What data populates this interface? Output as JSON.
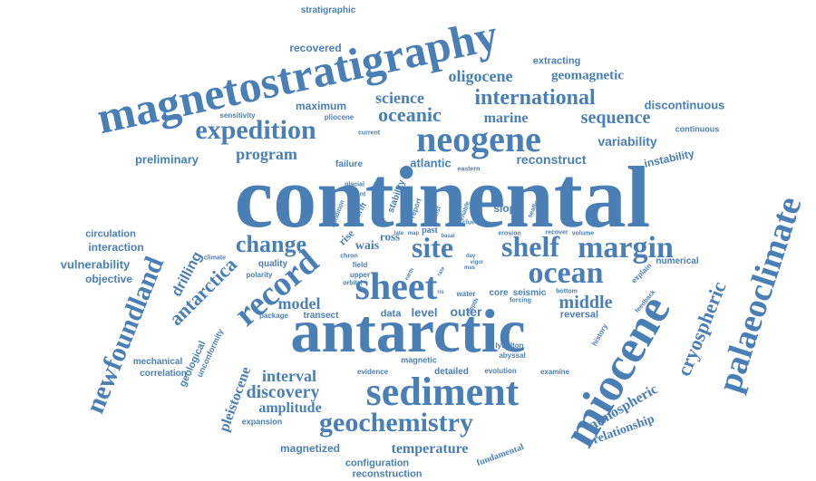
{
  "word_cloud": {
    "color": "#4a7fb5",
    "words": [
      "continental",
      "antarctic",
      "magnetostratigraphy",
      "sediment",
      "neogene",
      "miocene",
      "palaeoclimate",
      "sheet",
      "site",
      "shelf",
      "margin",
      "ocean",
      "record",
      "newfoundland",
      "expedition",
      "change",
      "oceanic",
      "international",
      "geochemistry",
      "cryospheric",
      "program",
      "science",
      "sequence",
      "antarctica",
      "oligocene",
      "geomagnetic",
      "marine",
      "discovery",
      "interval",
      "temperature",
      "amplitude",
      "model",
      "middle",
      "pleistocene",
      "atmospheric",
      "relationship",
      "stratigraphic",
      "recovered",
      "extracting",
      "discontinuous",
      "continuous",
      "maximum",
      "preliminary",
      "variability",
      "reconstruct",
      "atlantic",
      "instability",
      "drilling",
      "vulnerability",
      "circulation",
      "interaction",
      "objective",
      "mechanical",
      "correlation",
      "geological",
      "unconformity",
      "configuration",
      "reconstruction",
      "magnetized",
      "fundamental",
      "reversal",
      "level",
      "outer",
      "data",
      "transect",
      "package",
      "quality",
      "polarity",
      "climate",
      "wais",
      "ross",
      "rise",
      "past",
      "field",
      "seismic",
      "core",
      "water",
      "numerical",
      "explain",
      "feedback",
      "history",
      "evidence",
      "detailed",
      "evolution",
      "examine",
      "expansion",
      "slope",
      "seafloor",
      "stability",
      "report",
      "drift",
      "failure",
      "current",
      "sensitivity",
      "pliocene",
      "eastern",
      "lyttelton",
      "abyssal",
      "recover",
      "volume",
      "bottom",
      "erosion",
      "forcing",
      "depth",
      "magnetic",
      "condition",
      "glacial",
      "extent",
      "chron",
      "upper",
      "orbital",
      "clue",
      "enable",
      "most",
      "vigor",
      "late",
      "mas",
      "rate",
      "ris",
      "earth",
      "day",
      "basal",
      "map",
      "time",
      "iceberg"
    ]
  }
}
